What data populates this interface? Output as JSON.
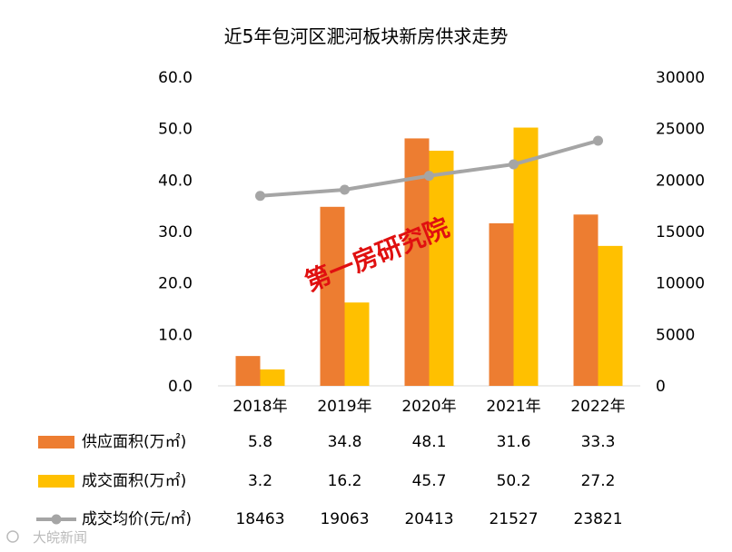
{
  "chart_data": {
    "type": "bar",
    "title": "近5年包河区淝河板块新房供求走势",
    "categories": [
      "2018年",
      "2019年",
      "2020年",
      "2021年",
      "2022年"
    ],
    "y_left": {
      "range": [
        0,
        60
      ],
      "ticks": [
        "0.0",
        "10.0",
        "20.0",
        "30.0",
        "40.0",
        "50.0",
        "60.0"
      ]
    },
    "y_right": {
      "range": [
        0,
        30000
      ],
      "ticks": [
        "0",
        "5000",
        "10000",
        "15000",
        "20000",
        "25000",
        "30000"
      ]
    },
    "grid": false,
    "legend": "data-table-bottom",
    "series": [
      {
        "name": "供应面积(万㎡)",
        "type": "bar",
        "axis": "left",
        "color": "#ed7d31",
        "values": [
          5.8,
          34.8,
          48.1,
          31.6,
          33.3
        ],
        "labels": [
          "5.8",
          "34.8",
          "48.1",
          "31.6",
          "33.3"
        ]
      },
      {
        "name": "成交面积(万㎡)",
        "type": "bar",
        "axis": "left",
        "color": "#ffc000",
        "values": [
          3.2,
          16.2,
          45.7,
          50.2,
          27.2
        ],
        "labels": [
          "3.2",
          "16.2",
          "45.7",
          "50.2",
          "27.2"
        ]
      },
      {
        "name": "成交均价(元/㎡)",
        "type": "line",
        "axis": "right",
        "color": "#a5a5a5",
        "values": [
          18463,
          19063,
          20413,
          21527,
          23821
        ],
        "labels": [
          "18463",
          "19063",
          "20413",
          "21527",
          "23821"
        ]
      }
    ]
  },
  "watermark": {
    "text": "第一房研究院",
    "source": "大皖新闻",
    "color": "#e01010"
  }
}
